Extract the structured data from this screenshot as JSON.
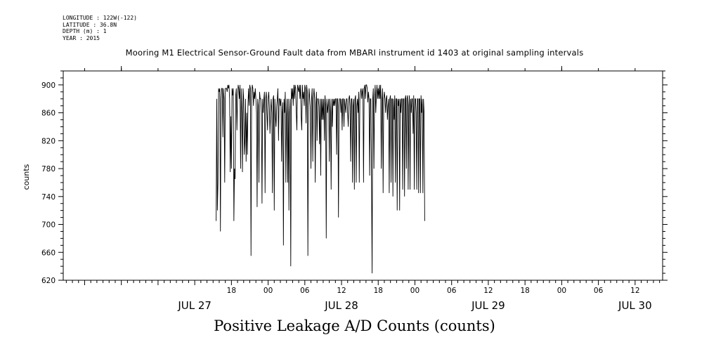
{
  "header": {
    "longitude": "LONGITUDE : 122W(-122)",
    "latitude": "LATITUDE : 36.8N",
    "depth": "DEPTH (m) : 1",
    "year": "YEAR : 2015"
  },
  "chart_data": {
    "type": "line",
    "title": "Mooring M1 Electrical Sensor-Ground Fault data from MBARI instrument id 1403 at original sampling intervals",
    "xlabel": "Positive Leakage A/D Counts (counts)",
    "ylabel": "counts",
    "ylim": [
      620,
      920
    ],
    "xlim_hours": [
      -9.5,
      88.5
    ],
    "x_reference": "JUL 27 00:00",
    "y_ticks": [
      620,
      660,
      700,
      740,
      780,
      820,
      860,
      900
    ],
    "x_major_ticks": [
      {
        "label": "18",
        "hour": 18
      },
      {
        "label": "00",
        "hour": 24
      },
      {
        "label": "06",
        "hour": 30
      },
      {
        "label": "12",
        "hour": 36
      },
      {
        "label": "18",
        "hour": 42
      },
      {
        "label": "00",
        "hour": 48
      },
      {
        "label": "06",
        "hour": 54
      },
      {
        "label": "12",
        "hour": 60
      },
      {
        "label": "18",
        "hour": 66
      },
      {
        "label": "00",
        "hour": 72
      },
      {
        "label": "06",
        "hour": 78
      },
      {
        "label": "12",
        "hour": 84
      }
    ],
    "day_labels": [
      {
        "label": "JUL 27",
        "hour": 12
      },
      {
        "label": "JUL 28",
        "hour": 36
      },
      {
        "label": "JUL 29",
        "hour": 60
      },
      {
        "label": "JUL 30",
        "hour": 84
      }
    ],
    "series": [
      {
        "x_start_hour": 15.5,
        "x_step_hours": 0.1,
        "values": [
          705,
          880,
          720,
          760,
          895,
          890,
          895,
          690,
          880,
          895,
          895,
          825,
          895,
          880,
          760,
          895,
          895,
          895,
          890,
          900,
          895,
          900,
          880,
          775,
          855,
          780,
          895,
          885,
          895,
          705,
          780,
          765,
          885,
          895,
          835,
          880,
          900,
          895,
          880,
          900,
          780,
          895,
          860,
          775,
          895,
          880,
          800,
          820,
          880,
          790,
          860,
          800,
          870,
          895,
          870,
          900,
          895,
          655,
          880,
          900,
          895,
          870,
          890,
          880,
          895,
          880,
          860,
          725,
          880,
          870,
          760,
          890,
          880,
          880,
          860,
          730,
          880,
          860,
          880,
          890,
          745,
          880,
          890,
          860,
          835,
          880,
          890,
          870,
          830,
          860,
          880,
          860,
          745,
          880,
          885,
          720,
          880,
          855,
          840,
          870,
          880,
          895,
          820,
          880,
          880,
          870,
          880,
          790,
          860,
          875,
          670,
          880,
          860,
          890,
          760,
          855,
          880,
          760,
          880,
          720,
          860,
          880,
          640,
          895,
          880,
          895,
          870,
          900,
          880,
          900,
          895,
          860,
          835,
          900,
          895,
          890,
          900,
          880,
          900,
          855,
          835,
          900,
          880,
          890,
          870,
          900,
          895,
          845,
          900,
          890,
          655,
          870,
          895,
          880,
          865,
          780,
          880,
          895,
          790,
          880,
          895,
          880,
          760,
          870,
          890,
          820,
          880,
          880,
          870,
          815,
          880,
          770,
          880,
          850,
          880,
          850,
          880,
          820,
          885,
          870,
          680,
          880,
          860,
          870,
          880,
          790,
          880,
          860,
          750,
          880,
          840,
          880,
          870,
          880,
          870,
          880,
          880,
          800,
          880,
          880,
          710,
          870,
          880,
          880,
          860,
          880,
          835,
          880,
          880,
          840,
          880,
          870,
          860,
          880,
          880,
          860,
          840,
          880,
          885,
          870,
          790,
          880,
          880,
          760,
          870,
          880,
          750,
          880,
          885,
          760,
          870,
          880,
          860,
          890,
          760,
          880,
          890,
          895,
          880,
          890,
          895,
          760,
          895,
          900,
          880,
          900,
          900,
          895,
          875,
          890,
          880,
          770,
          880,
          880,
          770,
          630,
          880,
          895,
          780,
          880,
          900,
          860,
          885,
          900,
          880,
          895,
          880,
          900,
          880,
          900,
          780,
          880,
          895,
          745,
          880,
          890,
          880,
          860,
          880,
          885,
          850,
          870,
          880,
          745,
          880,
          885,
          760,
          880,
          880,
          740,
          880,
          850,
          885,
          760,
          880,
          880,
          720,
          880,
          870,
          880,
          720,
          880,
          860,
          880,
          880,
          750,
          880,
          880,
          740,
          880,
          885,
          780,
          880,
          885,
          750,
          870,
          885,
          750,
          880,
          860,
          880,
          880,
          830,
          885,
          750,
          880,
          880,
          860,
          750,
          880,
          880,
          745,
          880,
          880,
          745,
          885,
          860,
          880,
          745,
          880,
          860,
          705
        ]
      }
    ]
  }
}
